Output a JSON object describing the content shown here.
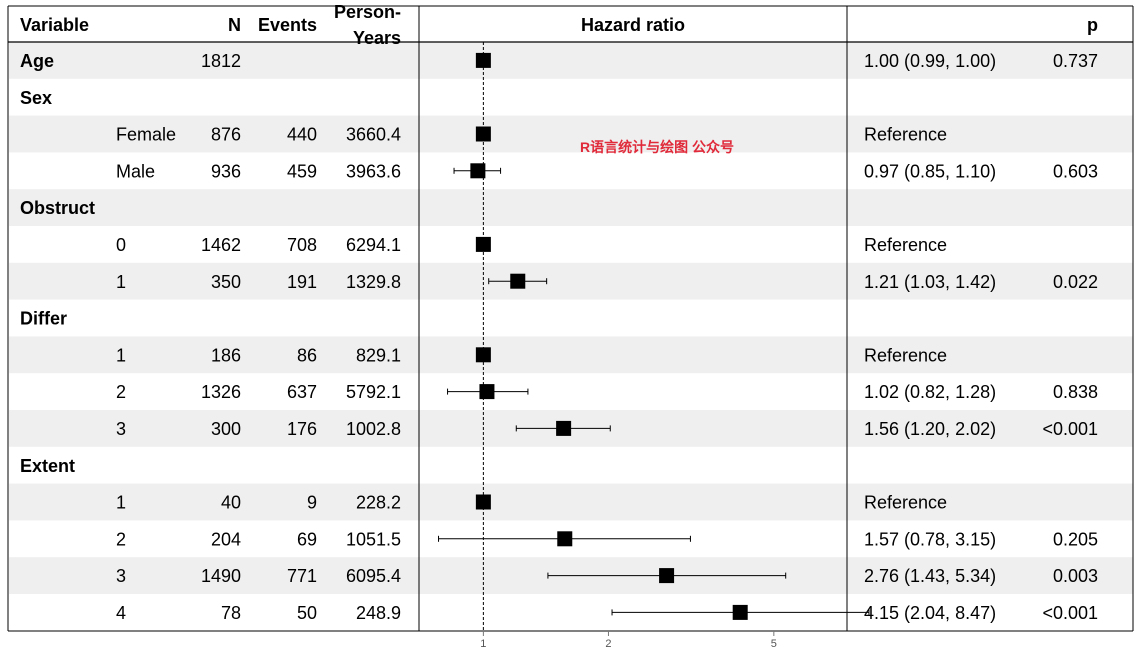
{
  "header": {
    "variable": "Variable",
    "n": "N",
    "events": "Events",
    "person_years_line1": "Person-",
    "person_years_line2": "Years",
    "hazard_ratio": "Hazard ratio",
    "p": "p"
  },
  "watermark": "R语言统计与绘图 公众号",
  "colors": {
    "band": "#efefef",
    "marker": "#000000",
    "watermark": "#e02a3a"
  },
  "chart_data": {
    "type": "forest",
    "x_scale": "log",
    "xlim": [
      0.7,
      7.5
    ],
    "reference_line": 1,
    "x_ticks": [
      1,
      2,
      5
    ],
    "x_tick_labels": [
      "1",
      "2",
      "5"
    ],
    "rows": [
      {
        "variable": "Age",
        "level": "",
        "n": "1812",
        "events": "",
        "person_years": "",
        "hr": 1.0,
        "lo": 0.99,
        "hi": 1.0,
        "estimate_text": "1.00 (0.99, 1.00)",
        "p": "0.737",
        "band": true
      },
      {
        "variable": "Sex",
        "level": "",
        "n": "",
        "events": "",
        "person_years": "",
        "hr": null,
        "lo": null,
        "hi": null,
        "estimate_text": "",
        "p": "",
        "band": false
      },
      {
        "variable": "",
        "level": "Female",
        "n": "876",
        "events": "440",
        "person_years": "3660.4",
        "hr": 1.0,
        "lo": null,
        "hi": null,
        "estimate_text": "Reference",
        "p": "",
        "band": true
      },
      {
        "variable": "",
        "level": "Male",
        "n": "936",
        "events": "459",
        "person_years": "3963.6",
        "hr": 0.97,
        "lo": 0.85,
        "hi": 1.1,
        "estimate_text": "0.97 (0.85, 1.10)",
        "p": "0.603",
        "band": false
      },
      {
        "variable": "Obstruct",
        "level": "",
        "n": "",
        "events": "",
        "person_years": "",
        "hr": null,
        "lo": null,
        "hi": null,
        "estimate_text": "",
        "p": "",
        "band": true
      },
      {
        "variable": "",
        "level": "0",
        "n": "1462",
        "events": "708",
        "person_years": "6294.1",
        "hr": 1.0,
        "lo": null,
        "hi": null,
        "estimate_text": "Reference",
        "p": "",
        "band": false
      },
      {
        "variable": "",
        "level": "1",
        "n": "350",
        "events": "191",
        "person_years": "1329.8",
        "hr": 1.21,
        "lo": 1.03,
        "hi": 1.42,
        "estimate_text": "1.21 (1.03, 1.42)",
        "p": "0.022",
        "band": true
      },
      {
        "variable": "Differ",
        "level": "",
        "n": "",
        "events": "",
        "person_years": "",
        "hr": null,
        "lo": null,
        "hi": null,
        "estimate_text": "",
        "p": "",
        "band": false
      },
      {
        "variable": "",
        "level": "1",
        "n": "186",
        "events": "86",
        "person_years": "829.1",
        "hr": 1.0,
        "lo": null,
        "hi": null,
        "estimate_text": "Reference",
        "p": "",
        "band": true
      },
      {
        "variable": "",
        "level": "2",
        "n": "1326",
        "events": "637",
        "person_years": "5792.1",
        "hr": 1.02,
        "lo": 0.82,
        "hi": 1.28,
        "estimate_text": "1.02 (0.82, 1.28)",
        "p": "0.838",
        "band": false
      },
      {
        "variable": "",
        "level": "3",
        "n": "300",
        "events": "176",
        "person_years": "1002.8",
        "hr": 1.56,
        "lo": 1.2,
        "hi": 2.02,
        "estimate_text": "1.56 (1.20, 2.02)",
        "p": "<0.001",
        "band": true
      },
      {
        "variable": "Extent",
        "level": "",
        "n": "",
        "events": "",
        "person_years": "",
        "hr": null,
        "lo": null,
        "hi": null,
        "estimate_text": "",
        "p": "",
        "band": false
      },
      {
        "variable": "",
        "level": "1",
        "n": "40",
        "events": "9",
        "person_years": "228.2",
        "hr": 1.0,
        "lo": null,
        "hi": null,
        "estimate_text": "Reference",
        "p": "",
        "band": true
      },
      {
        "variable": "",
        "level": "2",
        "n": "204",
        "events": "69",
        "person_years": "1051.5",
        "hr": 1.57,
        "lo": 0.78,
        "hi": 3.15,
        "estimate_text": "1.57 (0.78, 3.15)",
        "p": "0.205",
        "band": false
      },
      {
        "variable": "",
        "level": "3",
        "n": "1490",
        "events": "771",
        "person_years": "6095.4",
        "hr": 2.76,
        "lo": 1.43,
        "hi": 5.34,
        "estimate_text": "2.76 (1.43, 5.34)",
        "p": "0.003",
        "band": true
      },
      {
        "variable": "",
        "level": "4",
        "n": "78",
        "events": "50",
        "person_years": "248.9",
        "hr": 4.15,
        "lo": 2.04,
        "hi": 8.47,
        "estimate_text": "4.15 (2.04, 8.47)",
        "p": "<0.001",
        "band": false
      }
    ]
  }
}
